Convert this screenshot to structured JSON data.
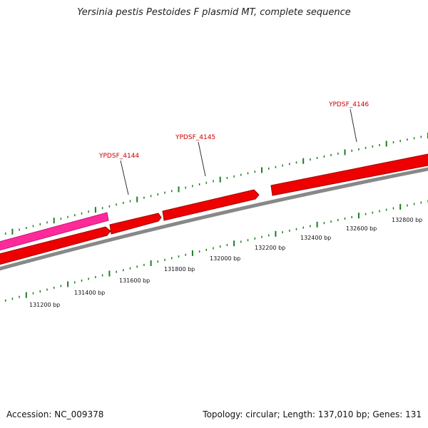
{
  "title": "Yersinia pestis Pestoides F plasmid MT, complete sequence",
  "footer": {
    "accession": "Accession: NC_009378",
    "summary": "Topology: circular; Length: 137,010 bp; Genes: 131"
  },
  "colors": {
    "backbone": "#888888",
    "gene_forward": "#ee0000",
    "gene_forward_alt": "#ff2a9a",
    "tick": "#1e7d1e",
    "gene_label": "#cc0000"
  },
  "gene_labels": [
    "YPDSF_4144",
    "YPDSF_4145",
    "YPDSF_4146"
  ],
  "bp_ticks": [
    "131200 bp",
    "131400 bp",
    "131600 bp",
    "131800 bp",
    "132000 bp",
    "132200 bp",
    "132400 bp",
    "132600 bp",
    "132800 bp"
  ]
}
